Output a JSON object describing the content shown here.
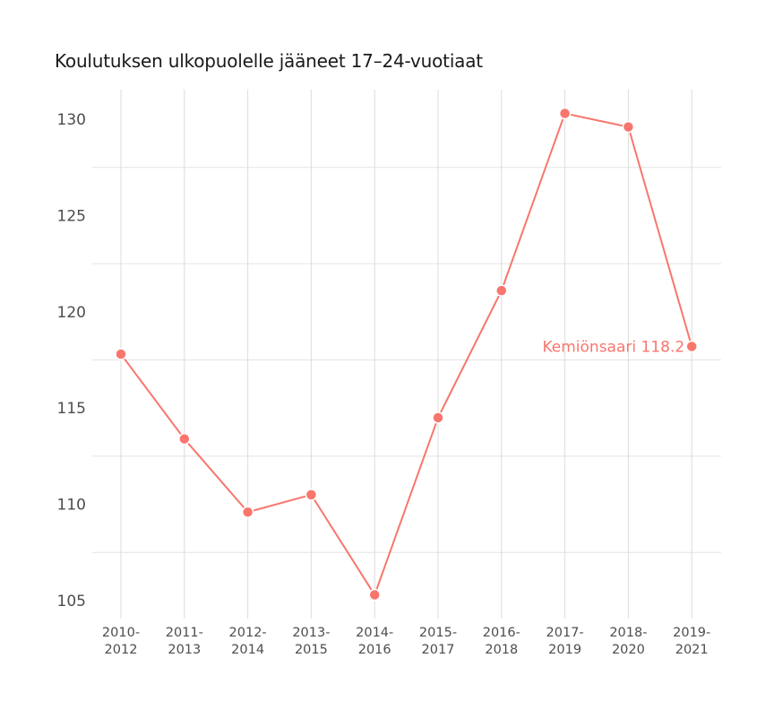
{
  "chart_data": {
    "type": "line",
    "title": "Koulutuksen ulkopuolelle jääneet 17–24-vuotiaat",
    "xlabel": "",
    "ylabel": "",
    "categories": [
      "2010-2012",
      "2011-2013",
      "2012-2014",
      "2013-2015",
      "2014-2016",
      "2015-2017",
      "2016-2018",
      "2017-2019",
      "2018-2020",
      "2019-2021"
    ],
    "category_lines": [
      [
        "2010-",
        "2012"
      ],
      [
        "2011-",
        "2013"
      ],
      [
        "2012-",
        "2014"
      ],
      [
        "2013-",
        "2015"
      ],
      [
        "2014-",
        "2016"
      ],
      [
        "2015-",
        "2017"
      ],
      [
        "2016-",
        "2018"
      ],
      [
        "2017-",
        "2019"
      ],
      [
        "2018-",
        "2020"
      ],
      [
        "2019-",
        "2021"
      ]
    ],
    "series": [
      {
        "name": "Kemiönsaari",
        "color": "#f8766d",
        "values": [
          117.8,
          113.4,
          109.6,
          110.5,
          105.3,
          114.5,
          121.1,
          130.3,
          129.6,
          118.2
        ]
      }
    ],
    "yticks": [
      105,
      110,
      115,
      120,
      125,
      130
    ],
    "ylim": [
      104.7,
      130.8
    ],
    "grid": true,
    "legend": "none",
    "annotation": {
      "text": "Kemiönsaari 118.2",
      "category": "2019-2021",
      "value": 118.2
    }
  }
}
